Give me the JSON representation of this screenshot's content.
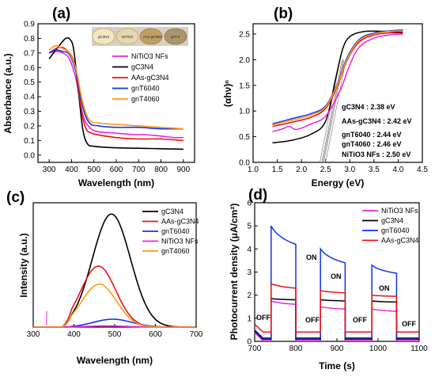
{
  "colors": {
    "magenta": "#ee22dd",
    "black": "#000000",
    "red": "#ee1111",
    "blue": "#1133ee",
    "orange": "#ff9a11"
  },
  "chart_data": [
    {
      "panel": "(a)",
      "type": "line",
      "xlabel": "Wavelength (nm)",
      "ylabel": "Absorbance (a.u.)",
      "xlim": [
        250,
        950
      ],
      "ylim": [
        -0.05,
        0.9
      ],
      "xticks": [
        300,
        400,
        500,
        600,
        700,
        800,
        900
      ],
      "yticks": [
        0.0,
        0.1,
        0.2,
        0.3,
        0.4,
        0.5,
        0.6,
        0.7,
        0.8,
        0.9
      ],
      "inset_labels": [
        "gC3N4",
        "NiTiO3",
        "AAs-gC3N4",
        "gnT-4"
      ],
      "legend": "top-right",
      "series": [
        {
          "name": "NiTiO3 NFs",
          "color": "magenta",
          "points": [
            [
              300,
              0.7
            ],
            [
              330,
              0.71
            ],
            [
              360,
              0.7
            ],
            [
              390,
              0.66
            ],
            [
              420,
              0.52
            ],
            [
              450,
              0.28
            ],
            [
              480,
              0.19
            ],
            [
              520,
              0.16
            ],
            [
              600,
              0.15
            ],
            [
              680,
              0.14
            ],
            [
              730,
              0.14
            ],
            [
              800,
              0.13
            ],
            [
              860,
              0.12
            ],
            [
              900,
              0.12
            ]
          ]
        },
        {
          "name": "gC3N4",
          "color": "black",
          "points": [
            [
              300,
              0.66
            ],
            [
              320,
              0.7
            ],
            [
              350,
              0.76
            ],
            [
              375,
              0.8
            ],
            [
              395,
              0.79
            ],
            [
              410,
              0.72
            ],
            [
              430,
              0.45
            ],
            [
              450,
              0.18
            ],
            [
              470,
              0.08
            ],
            [
              500,
              0.06
            ],
            [
              600,
              0.05
            ],
            [
              750,
              0.045
            ],
            [
              900,
              0.04
            ]
          ]
        },
        {
          "name": "AAs-gC3N4",
          "color": "red",
          "points": [
            [
              300,
              0.7
            ],
            [
              330,
              0.73
            ],
            [
              350,
              0.74
            ],
            [
              370,
              0.73
            ],
            [
              400,
              0.68
            ],
            [
              420,
              0.58
            ],
            [
              440,
              0.35
            ],
            [
              460,
              0.2
            ],
            [
              490,
              0.15
            ],
            [
              600,
              0.12
            ],
            [
              700,
              0.11
            ],
            [
              800,
              0.11
            ],
            [
              900,
              0.1
            ]
          ]
        },
        {
          "name": "gnT6040",
          "color": "blue",
          "points": [
            [
              300,
              0.7
            ],
            [
              330,
              0.72
            ],
            [
              360,
              0.71
            ],
            [
              390,
              0.69
            ],
            [
              420,
              0.57
            ],
            [
              450,
              0.33
            ],
            [
              480,
              0.22
            ],
            [
              520,
              0.2
            ],
            [
              600,
              0.19
            ],
            [
              700,
              0.19
            ],
            [
              800,
              0.18
            ],
            [
              900,
              0.18
            ]
          ]
        },
        {
          "name": "gnT4060",
          "color": "orange",
          "points": [
            [
              300,
              0.72
            ],
            [
              330,
              0.75
            ],
            [
              360,
              0.73
            ],
            [
              390,
              0.7
            ],
            [
              420,
              0.59
            ],
            [
              450,
              0.36
            ],
            [
              480,
              0.24
            ],
            [
              520,
              0.22
            ],
            [
              600,
              0.21
            ],
            [
              700,
              0.2
            ],
            [
              800,
              0.19
            ],
            [
              900,
              0.18
            ]
          ]
        }
      ]
    },
    {
      "panel": "(b)",
      "type": "line",
      "xlabel": "Energy (eV)",
      "ylabel": "(αhν)ⁿ",
      "xlim": [
        1.0,
        4.5
      ],
      "ylim": [
        0.0,
        2.7
      ],
      "xticks": [
        1.0,
        1.5,
        2.0,
        2.5,
        3.0,
        3.5,
        4.0,
        4.5
      ],
      "yticks": [
        0.0,
        0.5,
        1.0,
        1.5,
        2.0,
        2.5
      ],
      "annotations": [
        "gC3N4 : 2.38 eV",
        "AAs-gC3N4 : 2.42 eV",
        "gnT6040 : 2.44 eV",
        "gnT4060 : 2.46 eV",
        "NiTiO3 NFs : 2.50 eV"
      ],
      "series": [
        {
          "name": "gC3N4",
          "color": "black",
          "points": [
            [
              1.4,
              0.38
            ],
            [
              1.8,
              0.43
            ],
            [
              2.2,
              0.55
            ],
            [
              2.5,
              0.8
            ],
            [
              2.7,
              1.6
            ],
            [
              2.85,
              2.2
            ],
            [
              3.0,
              2.45
            ],
            [
              3.3,
              2.55
            ],
            [
              3.8,
              2.55
            ],
            [
              4.1,
              2.53
            ]
          ]
        },
        {
          "name": "NiTiO3 NFs",
          "color": "magenta",
          "points": [
            [
              1.4,
              0.6
            ],
            [
              1.6,
              0.65
            ],
            [
              1.75,
              0.7
            ],
            [
              1.9,
              0.64
            ],
            [
              2.2,
              0.75
            ],
            [
              2.5,
              0.9
            ],
            [
              2.8,
              1.4
            ],
            [
              3.0,
              1.9
            ],
            [
              3.2,
              2.25
            ],
            [
              3.5,
              2.42
            ],
            [
              3.8,
              2.48
            ],
            [
              4.1,
              2.5
            ]
          ]
        },
        {
          "name": "AAs-gC3N4",
          "color": "red",
          "points": [
            [
              1.4,
              0.7
            ],
            [
              1.8,
              0.78
            ],
            [
              2.2,
              0.88
            ],
            [
              2.5,
              1.05
            ],
            [
              2.75,
              1.5
            ],
            [
              2.95,
              2.0
            ],
            [
              3.2,
              2.35
            ],
            [
              3.5,
              2.48
            ],
            [
              3.8,
              2.52
            ],
            [
              4.1,
              2.52
            ]
          ]
        },
        {
          "name": "gnT6040",
          "color": "blue",
          "points": [
            [
              1.4,
              0.75
            ],
            [
              1.8,
              0.85
            ],
            [
              2.2,
              0.95
            ],
            [
              2.5,
              1.1
            ],
            [
              2.75,
              1.55
            ],
            [
              2.95,
              2.05
            ],
            [
              3.2,
              2.4
            ],
            [
              3.5,
              2.52
            ],
            [
              3.8,
              2.56
            ],
            [
              4.1,
              2.58
            ]
          ]
        },
        {
          "name": "gnT4060",
          "color": "orange",
          "points": [
            [
              1.4,
              0.73
            ],
            [
              1.8,
              0.82
            ],
            [
              2.2,
              0.92
            ],
            [
              2.5,
              1.08
            ],
            [
              2.75,
              1.53
            ],
            [
              2.95,
              2.02
            ],
            [
              3.2,
              2.38
            ],
            [
              3.5,
              2.5
            ],
            [
              3.8,
              2.55
            ],
            [
              4.1,
              2.56
            ]
          ]
        }
      ]
    },
    {
      "panel": "(c)",
      "type": "line",
      "xlabel": "Wavelength (nm)",
      "ylabel": "Intensity (a.u.)",
      "xlim": [
        300,
        700
      ],
      "xticks": [
        300,
        400,
        500,
        600,
        700
      ],
      "ylim": [
        0,
        1.1
      ],
      "legend": "top-right",
      "series": [
        {
          "name": "gC3N4",
          "color": "black",
          "peak_x": 492,
          "peak_y": 1.0,
          "fwhm": 110
        },
        {
          "name": "AAs-gC3N4",
          "color": "red",
          "peak_x": 460,
          "peak_y": 0.54,
          "fwhm": 100
        },
        {
          "name": "gnT6040",
          "color": "blue",
          "peak_x": 495,
          "peak_y": 0.07,
          "fwhm": 110
        },
        {
          "name": "NiTiO3 NFs",
          "color": "magenta",
          "peak_x": 480,
          "peak_y": 0.01,
          "fwhm": 120
        },
        {
          "name": "gnT4060",
          "color": "orange",
          "peak_x": 462,
          "peak_y": 0.38,
          "fwhm": 100
        }
      ]
    },
    {
      "panel": "(d)",
      "type": "line",
      "xlabel": "Time (s)",
      "ylabel": "Photocurrent density (μA/cm²)",
      "xlim": [
        700,
        1100
      ],
      "ylim": [
        0,
        6
      ],
      "xticks": [
        700,
        800,
        900,
        1000,
        1100
      ],
      "yticks": [
        0,
        1,
        2,
        3,
        4,
        5,
        6
      ],
      "on_periods": [
        [
          740,
          800
        ],
        [
          860,
          920
        ],
        [
          985,
          1045
        ]
      ],
      "on_labels": [
        "ON",
        "ON",
        "ON"
      ],
      "off_labels": [
        "OFF",
        "OFF",
        "OFF",
        "OFF"
      ],
      "legend": "top-right",
      "series": [
        {
          "name": "NiTiO3 NFs",
          "color": "magenta",
          "on_levels": [
            1.75,
            1.5,
            1.4
          ],
          "on_end_levels": [
            1.6,
            1.4,
            1.3
          ],
          "off_level": 0.03
        },
        {
          "name": "gC3N4",
          "color": "black",
          "on_levels": [
            1.85,
            1.8,
            1.75
          ],
          "on_end_levels": [
            1.8,
            1.75,
            1.7
          ],
          "off_level": 0.1
        },
        {
          "name": "gnT6040",
          "color": "blue",
          "on_levels": [
            5.0,
            4.0,
            3.3
          ],
          "on_end_levels": [
            4.2,
            3.4,
            2.95
          ],
          "off_level": 0.15
        },
        {
          "name": "AAs-gC3N4",
          "color": "red",
          "on_levels": [
            2.5,
            2.2,
            2.0
          ],
          "on_end_levels": [
            2.3,
            2.1,
            1.95
          ],
          "off_level": 0.4
        }
      ]
    }
  ]
}
